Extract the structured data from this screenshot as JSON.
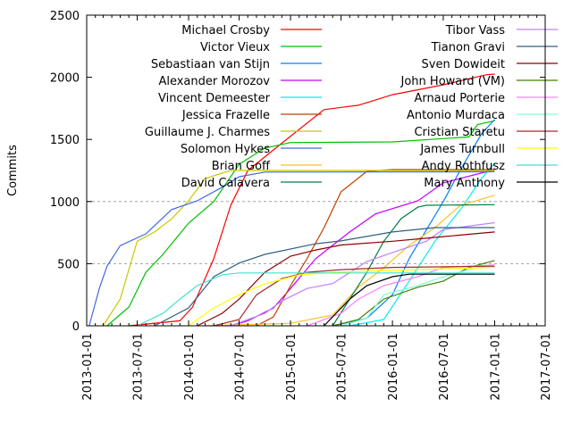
{
  "chart_data": {
    "type": "line",
    "title": "",
    "xlabel": "",
    "ylabel": "Commits",
    "xlim": [
      "2013-01-01",
      "2017-07-01"
    ],
    "ylim": [
      0,
      2500
    ],
    "x_ticks": [
      "2013-01-01",
      "2013-07-01",
      "2014-01-01",
      "2014-07-01",
      "2015-01-01",
      "2015-07-01",
      "2016-01-01",
      "2016-07-01",
      "2017-01-01",
      "2017-07-01"
    ],
    "y_ticks": [
      "0",
      "500",
      "1000",
      "1500",
      "2000",
      "2500"
    ],
    "grid_y": [
      500,
      1000
    ],
    "legend_placement": "top, two columns",
    "series": [
      {
        "name": "Michael Crosby",
        "color": "#ff0000",
        "points": [
          [
            "2013-06-01",
            0
          ],
          [
            "2013-12-01",
            40
          ],
          [
            "2014-01-15",
            150
          ],
          [
            "2014-04-01",
            540
          ],
          [
            "2014-06-01",
            970
          ],
          [
            "2014-08-01",
            1250
          ],
          [
            "2014-12-01",
            1470
          ],
          [
            "2015-05-01",
            1740
          ],
          [
            "2015-09-01",
            1775
          ],
          [
            "2016-01-01",
            1860
          ],
          [
            "2016-07-01",
            1940
          ],
          [
            "2016-12-01",
            2020
          ],
          [
            "2017-01-01",
            2026
          ]
        ]
      },
      {
        "name": "Victor Vieux",
        "color": "#00c000",
        "points": [
          [
            "2013-03-15",
            0
          ],
          [
            "2013-06-01",
            150
          ],
          [
            "2013-08-01",
            430
          ],
          [
            "2013-10-01",
            575
          ],
          [
            "2014-01-01",
            826
          ],
          [
            "2014-04-01",
            1000
          ],
          [
            "2014-07-01",
            1300
          ],
          [
            "2014-10-01",
            1430
          ],
          [
            "2015-01-01",
            1475
          ],
          [
            "2016-01-01",
            1480
          ],
          [
            "2016-10-01",
            1520
          ],
          [
            "2016-11-01",
            1620
          ],
          [
            "2017-01-01",
            1650
          ]
        ]
      },
      {
        "name": "Sebastiaan van Stijn",
        "color": "#0080ff",
        "points": [
          [
            "2015-06-01",
            0
          ],
          [
            "2015-10-01",
            60
          ],
          [
            "2016-01-01",
            250
          ],
          [
            "2016-03-01",
            540
          ],
          [
            "2016-05-01",
            770
          ],
          [
            "2016-07-01",
            1000
          ],
          [
            "2016-09-01",
            1257
          ],
          [
            "2016-11-15",
            1545
          ],
          [
            "2017-01-01",
            1660
          ]
        ]
      },
      {
        "name": "Alexander Morozov",
        "color": "#c000ff",
        "points": [
          [
            "2014-06-01",
            0
          ],
          [
            "2014-08-01",
            40
          ],
          [
            "2014-11-01",
            144
          ],
          [
            "2015-01-01",
            300
          ],
          [
            "2015-04-01",
            540
          ],
          [
            "2015-08-01",
            755
          ],
          [
            "2015-11-01",
            900
          ],
          [
            "2016-04-01",
            1006
          ],
          [
            "2016-07-01",
            1150
          ],
          [
            "2017-01-01",
            1257
          ]
        ]
      },
      {
        "name": "Vincent Demeester",
        "color": "#00eeee",
        "points": [
          [
            "2015-08-01",
            0
          ],
          [
            "2015-12-01",
            50
          ],
          [
            "2016-03-01",
            360
          ],
          [
            "2016-06-01",
            680
          ],
          [
            "2016-09-01",
            935
          ],
          [
            "2016-11-15",
            1185
          ],
          [
            "2017-01-01",
            1310
          ]
        ]
      },
      {
        "name": "Jessica Frazelle",
        "color": "#c04000",
        "points": [
          [
            "2014-09-01",
            0
          ],
          [
            "2014-11-01",
            72
          ],
          [
            "2015-01-01",
            323
          ],
          [
            "2015-03-01",
            540
          ],
          [
            "2015-05-01",
            790
          ],
          [
            "2015-07-01",
            1078
          ],
          [
            "2015-10-01",
            1243
          ],
          [
            "2016-01-01",
            1257
          ],
          [
            "2017-01-01",
            1257
          ]
        ]
      },
      {
        "name": "Guillaume J. Charmes",
        "color": "#c8c800",
        "points": [
          [
            "2013-03-01",
            0
          ],
          [
            "2013-05-01",
            215
          ],
          [
            "2013-07-01",
            680
          ],
          [
            "2013-09-01",
            755
          ],
          [
            "2013-11-01",
            860
          ],
          [
            "2014-01-01",
            1006
          ],
          [
            "2014-03-01",
            1185
          ],
          [
            "2014-06-01",
            1250
          ],
          [
            "2017-01-01",
            1250
          ]
        ]
      },
      {
        "name": "Solomon Hykes",
        "color": "#4169e1",
        "points": [
          [
            "2013-01-10",
            0
          ],
          [
            "2013-02-15",
            300
          ],
          [
            "2013-03-15",
            480
          ],
          [
            "2013-05-01",
            645
          ],
          [
            "2013-08-01",
            740
          ],
          [
            "2013-11-01",
            935
          ],
          [
            "2014-02-01",
            1006
          ],
          [
            "2014-05-01",
            1115
          ],
          [
            "2014-07-01",
            1200
          ],
          [
            "2014-10-01",
            1237
          ],
          [
            "2017-01-01",
            1240
          ]
        ]
      },
      {
        "name": "Brian Goff",
        "color": "#ffc020",
        "points": [
          [
            "2014-03-01",
            0
          ],
          [
            "2015-01-01",
            20
          ],
          [
            "2015-06-01",
            86
          ],
          [
            "2015-09-01",
            310
          ],
          [
            "2015-12-01",
            467
          ],
          [
            "2016-03-01",
            647
          ],
          [
            "2016-06-01",
            790
          ],
          [
            "2016-09-01",
            970
          ],
          [
            "2017-01-01",
            1050
          ]
        ]
      },
      {
        "name": "David Calavera",
        "color": "#008040",
        "points": [
          [
            "2015-06-01",
            0
          ],
          [
            "2015-08-01",
            215
          ],
          [
            "2015-10-01",
            430
          ],
          [
            "2015-12-01",
            680
          ],
          [
            "2016-02-01",
            862
          ],
          [
            "2016-04-01",
            955
          ],
          [
            "2016-05-01",
            970
          ],
          [
            "2017-01-01",
            975
          ]
        ]
      },
      {
        "name": "Tibor Vass",
        "color": "#c080ff",
        "points": [
          [
            "2014-06-01",
            0
          ],
          [
            "2014-10-01",
            100
          ],
          [
            "2014-12-01",
            200
          ],
          [
            "2015-03-01",
            300
          ],
          [
            "2015-06-01",
            340
          ],
          [
            "2015-10-01",
            517
          ],
          [
            "2016-01-01",
            590
          ],
          [
            "2016-05-01",
            680
          ],
          [
            "2016-07-01",
            775
          ],
          [
            "2017-01-01",
            830
          ]
        ]
      },
      {
        "name": "Tianon Gravi",
        "color": "#306080",
        "points": [
          [
            "2013-09-01",
            0
          ],
          [
            "2014-01-01",
            144
          ],
          [
            "2014-04-01",
            395
          ],
          [
            "2014-07-01",
            505
          ],
          [
            "2014-10-01",
            575
          ],
          [
            "2015-04-01",
            660
          ],
          [
            "2015-07-01",
            683
          ],
          [
            "2016-01-01",
            755
          ],
          [
            "2016-06-01",
            790
          ],
          [
            "2017-01-01",
            790
          ]
        ]
      },
      {
        "name": "Sven Dowideit",
        "color": "#8b0000",
        "points": [
          [
            "2014-02-01",
            0
          ],
          [
            "2014-05-01",
            100
          ],
          [
            "2014-07-01",
            215
          ],
          [
            "2014-10-01",
            430
          ],
          [
            "2015-01-01",
            560
          ],
          [
            "2015-04-01",
            610
          ],
          [
            "2015-07-01",
            650
          ],
          [
            "2016-01-01",
            680
          ],
          [
            "2016-07-01",
            718
          ],
          [
            "2017-01-01",
            755
          ]
        ]
      },
      {
        "name": "John Howard (VM)",
        "color": "#408000",
        "points": [
          [
            "2015-06-01",
            0
          ],
          [
            "2015-09-01",
            50
          ],
          [
            "2015-12-01",
            215
          ],
          [
            "2016-04-01",
            310
          ],
          [
            "2016-07-01",
            360
          ],
          [
            "2016-10-01",
            470
          ],
          [
            "2017-01-01",
            525
          ]
        ]
      },
      {
        "name": "Arnaud Porterie",
        "color": "#ff80ff",
        "points": [
          [
            "2015-03-01",
            0
          ],
          [
            "2015-07-01",
            100
          ],
          [
            "2015-09-01",
            215
          ],
          [
            "2015-12-01",
            323
          ],
          [
            "2016-04-01",
            395
          ],
          [
            "2016-07-01",
            470
          ],
          [
            "2017-01-01",
            490
          ]
        ]
      },
      {
        "name": "Antonio Murdaca",
        "color": "#7fffd4",
        "points": [
          [
            "2015-07-01",
            0
          ],
          [
            "2015-10-01",
            60
          ],
          [
            "2015-12-01",
            250
          ],
          [
            "2016-04-01",
            323
          ],
          [
            "2016-07-01",
            395
          ],
          [
            "2016-11-01",
            470
          ],
          [
            "2017-01-01",
            480
          ]
        ]
      },
      {
        "name": "Cristian Staretu",
        "color": "#a52a2a",
        "points": [
          [
            "2014-04-01",
            0
          ],
          [
            "2014-07-01",
            50
          ],
          [
            "2014-09-01",
            250
          ],
          [
            "2014-12-01",
            380
          ],
          [
            "2015-03-01",
            430
          ],
          [
            "2015-07-01",
            452
          ],
          [
            "2016-01-01",
            470
          ],
          [
            "2017-01-01",
            480
          ]
        ]
      },
      {
        "name": "James Turnbull",
        "color": "#ffff00",
        "points": [
          [
            "2014-01-01",
            0
          ],
          [
            "2014-04-01",
            144
          ],
          [
            "2014-07-01",
            250
          ],
          [
            "2014-10-01",
            338
          ],
          [
            "2015-02-01",
            410
          ],
          [
            "2015-06-01",
            430
          ],
          [
            "2015-12-01",
            445
          ],
          [
            "2017-01-01",
            470
          ]
        ]
      },
      {
        "name": "Andy Rothfusz",
        "color": "#40e0d0",
        "points": [
          [
            "2013-07-01",
            0
          ],
          [
            "2013-10-01",
            100
          ],
          [
            "2013-12-01",
            215
          ],
          [
            "2014-02-01",
            323
          ],
          [
            "2014-05-01",
            410
          ],
          [
            "2014-07-01",
            425
          ],
          [
            "2017-01-01",
            425
          ]
        ]
      },
      {
        "name": "Mary Anthony",
        "color": "#000000",
        "points": [
          [
            "2015-05-01",
            0
          ],
          [
            "2015-08-01",
            215
          ],
          [
            "2015-10-01",
            323
          ],
          [
            "2016-01-01",
            395
          ],
          [
            "2016-03-01",
            415
          ],
          [
            "2017-01-01",
            415
          ]
        ]
      }
    ]
  }
}
